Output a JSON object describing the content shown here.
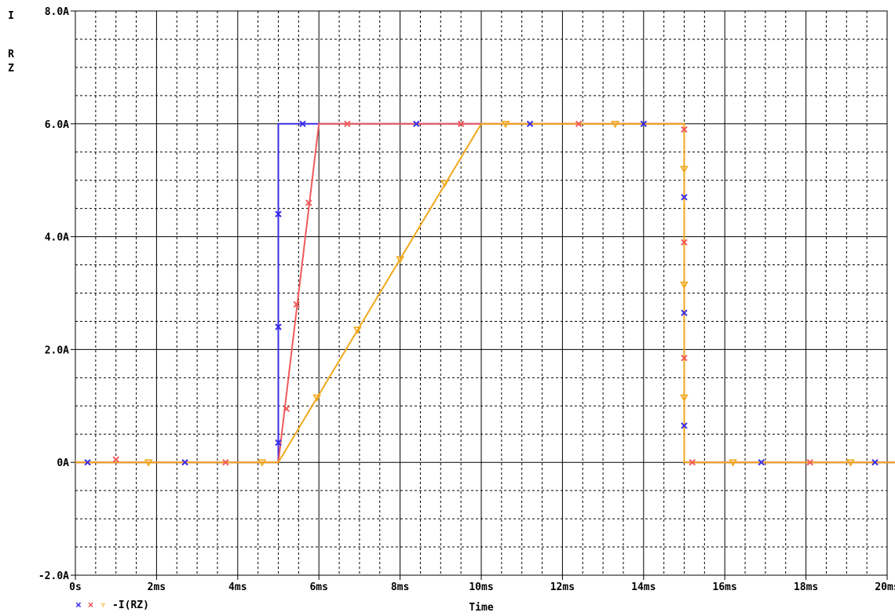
{
  "chart_data": {
    "type": "line",
    "ylabel_chars": [
      "I",
      "R",
      "Z"
    ],
    "xlabel": "Time",
    "xlim": [
      0,
      20
    ],
    "ylim": [
      -2,
      8
    ],
    "x_ticks": [
      0,
      2,
      4,
      6,
      8,
      10,
      12,
      14,
      16,
      18,
      20
    ],
    "x_tick_labels": [
      "0s",
      "2ms",
      "4ms",
      "6ms",
      "8ms",
      "10ms",
      "12ms",
      "14ms",
      "16ms",
      "18ms",
      "20ms"
    ],
    "y_ticks": [
      -2,
      0,
      2,
      4,
      6,
      8
    ],
    "y_tick_labels": [
      "-2.0A",
      "0A",
      "2.0A",
      "4.0A",
      "6.0A",
      "8.0A"
    ],
    "legend_text": "-I(RZ)",
    "legend_position": "bottom-left",
    "grid": true,
    "series": [
      {
        "color": "#3a2ee8",
        "marker": "x",
        "x": [
          0,
          5.0,
          5.0,
          15.0,
          15.0,
          20.4
        ],
        "y": [
          0,
          0,
          6,
          6,
          0,
          0
        ],
        "markers_x": [
          0.3,
          2.7,
          5.0,
          5.0,
          5.0,
          5.6,
          8.4,
          11.2,
          14.0,
          15.0,
          15.0,
          15.0,
          16.9,
          19.7
        ],
        "markers_y": [
          0,
          0,
          0.35,
          2.4,
          4.4,
          6,
          6,
          6,
          6,
          4.7,
          2.65,
          0.65,
          0,
          0
        ]
      },
      {
        "color": "#f05a5a",
        "marker": "x",
        "x": [
          0,
          5.0,
          6.0,
          15.0,
          15.0,
          20.4
        ],
        "y": [
          0,
          0,
          6,
          6,
          0,
          0
        ],
        "markers_x": [
          1.0,
          3.7,
          5.2,
          5.45,
          5.75,
          6.7,
          9.5,
          12.4,
          15.0,
          15.0,
          15.0,
          15.2,
          18.1
        ],
        "markers_y": [
          0.05,
          0,
          0.95,
          2.8,
          4.6,
          6,
          6,
          6,
          5.9,
          3.9,
          1.85,
          0,
          0
        ]
      },
      {
        "color": "#f0a81c",
        "marker": "triangle-down",
        "x": [
          0,
          5.0,
          10.0,
          15.0,
          15.0,
          20.4
        ],
        "y": [
          0,
          0,
          6,
          6,
          0,
          0
        ],
        "markers_x": [
          1.8,
          4.6,
          5.95,
          6.95,
          8.0,
          9.1,
          10.6,
          13.3,
          15.0,
          15.0,
          15.0,
          16.2,
          19.1
        ],
        "markers_y": [
          0,
          0,
          1.15,
          2.35,
          3.6,
          4.95,
          6,
          6,
          5.2,
          3.15,
          1.15,
          0,
          0
        ]
      }
    ]
  }
}
